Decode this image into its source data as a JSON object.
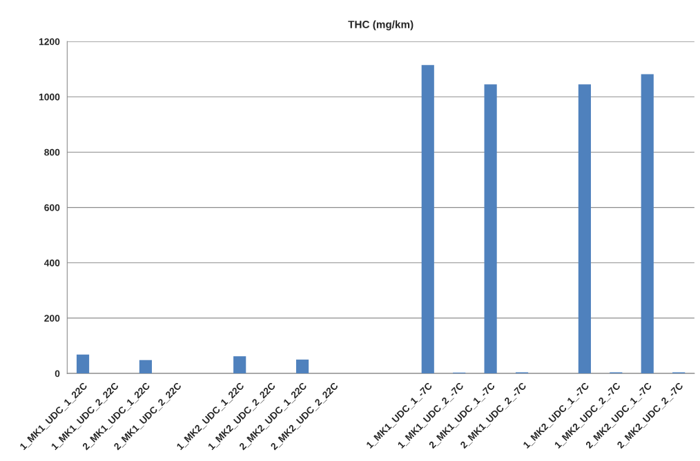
{
  "chart_data": {
    "type": "bar",
    "title": "THC (mg/km)",
    "categories": [
      "1_MK1_UDC_1_22C",
      "1_MK1_UDC_2_22C",
      "2_MK1_UDC_1_22C",
      "2_MK1_UDC_2_22C",
      null,
      "1_MK2_UDC_1_22C",
      "1_MK2_UDC_2_22C",
      "2_MK2_UDC_1_22C",
      "2_MK2_UDC_2_22C",
      null,
      null,
      "1_MK1_UDC_1_-7C",
      "1_MK1_UDC_2_-7C",
      "2_MK1_UDC_1_-7C",
      "2_MK1_UDC_2_-7C",
      null,
      "1_MK2_UDC_1_-7C",
      "1_MK2_UDC_2_-7C",
      "2_MK2_UDC_1_-7C",
      "2_MK2_UDC_2_-7C"
    ],
    "values": [
      68,
      null,
      48,
      null,
      null,
      62,
      null,
      50,
      null,
      null,
      null,
      1115,
      3,
      1045,
      4,
      null,
      1045,
      4,
      1082,
      4
    ],
    "color": "#4f81bd",
    "ylim": [
      0,
      1200
    ],
    "yticks": [
      0,
      200,
      400,
      600,
      800,
      1000,
      1200
    ],
    "grid": "y",
    "legend": false
  }
}
